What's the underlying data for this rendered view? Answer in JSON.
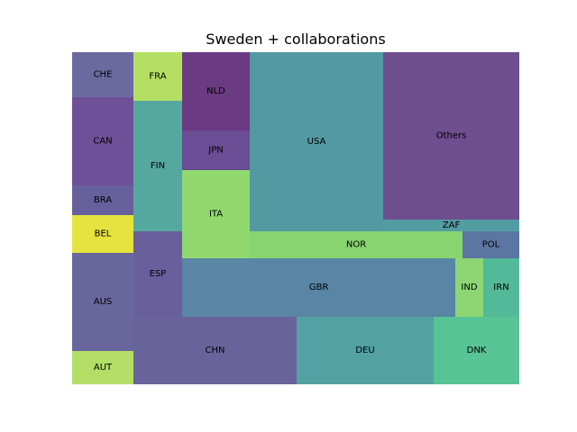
{
  "chart_data": {
    "type": "treemap",
    "title": "Sweden + collaborations",
    "cells": [
      {
        "label": "CHE",
        "color": "#6a6a9e"
      },
      {
        "label": "CAN",
        "color": "#6f4f97"
      },
      {
        "label": "BRA",
        "color": "#66619d"
      },
      {
        "label": "BEL",
        "color": "#e6e33f"
      },
      {
        "label": "AUS",
        "color": "#69669e"
      },
      {
        "label": "AUT",
        "color": "#b3df66"
      },
      {
        "label": "FRA",
        "color": "#b5df63"
      },
      {
        "label": "FIN",
        "color": "#55a8a0"
      },
      {
        "label": "ESP",
        "color": "#695f9c"
      },
      {
        "label": "NLD",
        "color": "#6a3a83"
      },
      {
        "label": "JPN",
        "color": "#6b4d96"
      },
      {
        "label": "ITA",
        "color": "#91d96f"
      },
      {
        "label": "USA",
        "color": "#5299a2"
      },
      {
        "label": "Others",
        "color": "#6e4e8e"
      },
      {
        "label": "ZAF",
        "color": "#539da2"
      },
      {
        "label": "NOR",
        "color": "#88d570"
      },
      {
        "label": "POL",
        "color": "#5d75a2"
      },
      {
        "label": "GBR",
        "color": "#5886a4"
      },
      {
        "label": "IND",
        "color": "#8dd673"
      },
      {
        "label": "IRN",
        "color": "#52ba98"
      },
      {
        "label": "CHN",
        "color": "#69639c"
      },
      {
        "label": "DEU",
        "color": "#53a1a3"
      },
      {
        "label": "DNK",
        "color": "#58c394"
      }
    ]
  }
}
